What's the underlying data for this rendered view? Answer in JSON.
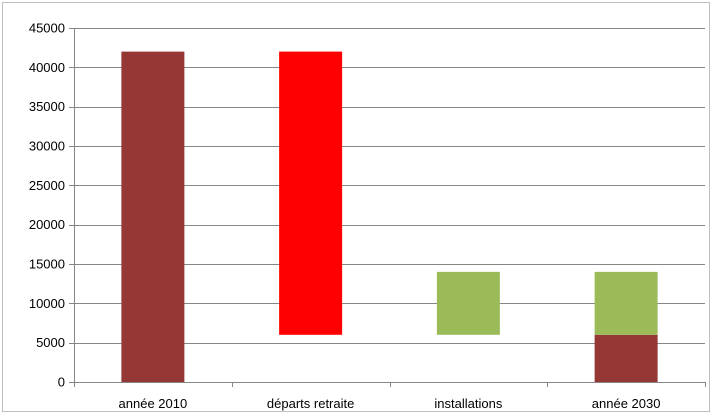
{
  "chart_data": {
    "type": "bar",
    "categories": [
      "année 2010",
      "départs retraite",
      "installations",
      "année 2030"
    ],
    "ylim": [
      0,
      45000
    ],
    "yticks": [
      0,
      5000,
      10000,
      15000,
      20000,
      25000,
      30000,
      35000,
      40000,
      45000
    ],
    "yticks_labels": [
      "0",
      "5000",
      "10000",
      "15000",
      "20000",
      "25000",
      "30000",
      "35000",
      "40000",
      "45000"
    ],
    "grid": true,
    "legend": "none",
    "bars": [
      {
        "category": "année 2010",
        "from": 0,
        "to": 42000,
        "color": "#953735"
      },
      {
        "category": "départs retraite",
        "from": 6000,
        "to": 42000,
        "color": "#ff0000"
      },
      {
        "category": "installations",
        "from": 6000,
        "to": 14000,
        "color": "#9bbb59"
      },
      {
        "category": "année 2030",
        "from": 0,
        "to": 6000,
        "color": "#953735"
      },
      {
        "category": "année 2030",
        "from": 6000,
        "to": 14000,
        "color": "#9bbb59"
      }
    ],
    "colors": {
      "grid": "#868686",
      "axis": "#868686"
    }
  }
}
